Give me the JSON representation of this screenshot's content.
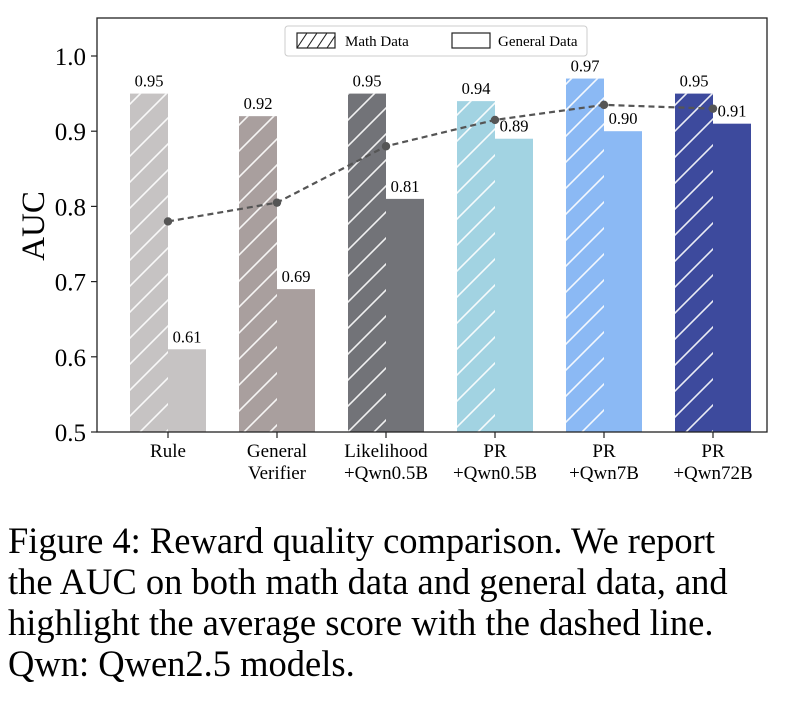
{
  "chart_data": {
    "type": "bar",
    "ylabel": "AUC",
    "xlabel": "",
    "ylim": [
      0.5,
      1.05
    ],
    "yticks": [
      "0.5",
      "0.6",
      "0.7",
      "0.8",
      "0.9",
      "1.0"
    ],
    "categories": [
      [
        "Rule"
      ],
      [
        "General",
        "Verifier"
      ],
      [
        "Likelihood",
        "+Qwn0.5B"
      ],
      [
        "PR",
        "+Qwn0.5B"
      ],
      [
        "PR",
        "+Qwn7B"
      ],
      [
        "PR",
        "+Qwn72B"
      ]
    ],
    "series": [
      {
        "name": "Math Data",
        "values": [
          0.95,
          0.92,
          0.95,
          0.94,
          0.97,
          0.95
        ],
        "labels": [
          "0.95",
          "0.92",
          "0.95",
          "0.94",
          "0.97",
          "0.95"
        ],
        "hatch": true
      },
      {
        "name": "General Data",
        "values": [
          0.61,
          0.69,
          0.81,
          0.89,
          0.9,
          0.91
        ],
        "labels": [
          "0.61",
          "0.69",
          "0.81",
          "0.89",
          "0.90",
          "0.91"
        ],
        "hatch": false
      }
    ],
    "average_line": {
      "values": [
        0.78,
        0.805,
        0.88,
        0.915,
        0.935,
        0.93
      ],
      "style": "dashed",
      "color": "#555555"
    },
    "category_colors": [
      "#c6c3c3",
      "#a99f9e",
      "#727378",
      "#a2d3e2",
      "#8bb9f4",
      "#3d4a9d"
    ],
    "legend_placement": "top-center",
    "grid": false
  },
  "caption": {
    "text": "Figure 4: Reward quality comparison. We report\nthe AUC on both math data and general data, and\nhighlight the average score with the dashed line.\nQwn: Qwen2.5 models."
  }
}
